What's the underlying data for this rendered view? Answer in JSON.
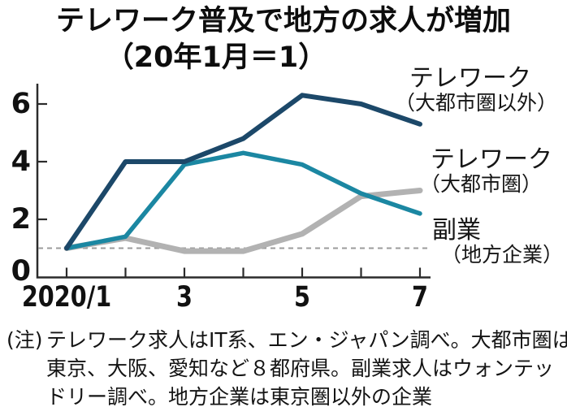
{
  "title": {
    "line1": "テレワーク普及で地方の求人が増加",
    "line2": "（20年1月＝1）"
  },
  "chart_data": {
    "type": "line",
    "x_months": [
      "2020/1",
      "2020/2",
      "2020/3",
      "2020/4",
      "2020/5",
      "2020/6",
      "2020/7"
    ],
    "x_tick_labels": [
      {
        "index": 0,
        "label": "2020/1"
      },
      {
        "index": 2,
        "label": "3"
      },
      {
        "index": 4,
        "label": "5"
      },
      {
        "index": 6,
        "label": "7"
      }
    ],
    "yticks": [
      0,
      2,
      4,
      6
    ],
    "ylim": [
      0,
      6.9
    ],
    "grid": false,
    "baseline": {
      "value": 1,
      "style": "dashed",
      "color": "#9b9b9b"
    },
    "series": [
      {
        "name": "テレワーク（大都市圏以外）",
        "color": "#1c4869",
        "values": [
          1.0,
          4.0,
          4.0,
          4.8,
          6.3,
          6.0,
          5.3
        ]
      },
      {
        "name": "テレワーク（大都市圏）",
        "color": "#1b87a2",
        "values": [
          1.0,
          1.4,
          3.9,
          4.3,
          3.9,
          2.9,
          2.2
        ]
      },
      {
        "name": "副業（地方企業）",
        "color": "#b2b2b2",
        "values": [
          1.0,
          1.35,
          0.9,
          0.9,
          1.5,
          2.8,
          3.0
        ]
      }
    ],
    "legend_position": "right"
  },
  "legend": {
    "items": [
      {
        "label": "テレワーク",
        "sublabel": "（大都市圏以外）"
      },
      {
        "label": "テレワーク",
        "sublabel": "（大都市圏）"
      },
      {
        "label": "副業",
        "sublabel": "（地方企業）"
      }
    ]
  },
  "note": {
    "prefix": "(注)",
    "lines": [
      "テレワーク求人はIT系、エン・ジャパン調べ。大都市圏は",
      "東京、大阪、愛知など８都府県。副業求人はウォンテッ",
      "ドリー調べ。地方企業は東京圏以外の企業"
    ]
  },
  "colors": {
    "telework_non_metro": "#1c4869",
    "telework_metro": "#1b87a2",
    "side_jobs": "#b2b2b2",
    "axis": "#2b2b2b",
    "baseline_dash": "#9b9b9b",
    "text": "#111111",
    "background": "#ffffff"
  }
}
